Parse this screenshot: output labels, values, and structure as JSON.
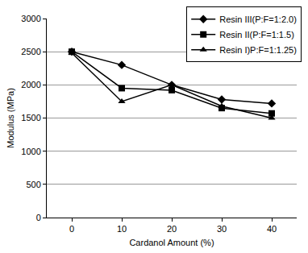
{
  "chart_data": {
    "type": "line",
    "x_label": "Cardanol Amount (%)",
    "y_label": "Modulus (MPa)",
    "categories": [
      "0",
      "10",
      "20",
      "30",
      "40"
    ],
    "series": [
      {
        "name": "Resin III(P:F=1:2.0)",
        "color": "#000000",
        "marker": "diamond",
        "values": [
          2500,
          2300,
          2000,
          1780,
          1720
        ]
      },
      {
        "name": "Resin II(P:F=1:1.5)",
        "color": "#000000",
        "marker": "square",
        "values": [
          2500,
          1950,
          1920,
          1650,
          1570
        ]
      },
      {
        "name": "Resin I)P:F=1:1.25)",
        "color": "#000000",
        "marker": "triangle-up",
        "values": [
          2480,
          1750,
          2000,
          1680,
          1500
        ]
      }
    ],
    "ylim": [
      0,
      3000
    ],
    "yticks": [
      0,
      500,
      1000,
      1500,
      2000,
      2500,
      3000
    ],
    "grid": true,
    "legend": "top-right"
  }
}
